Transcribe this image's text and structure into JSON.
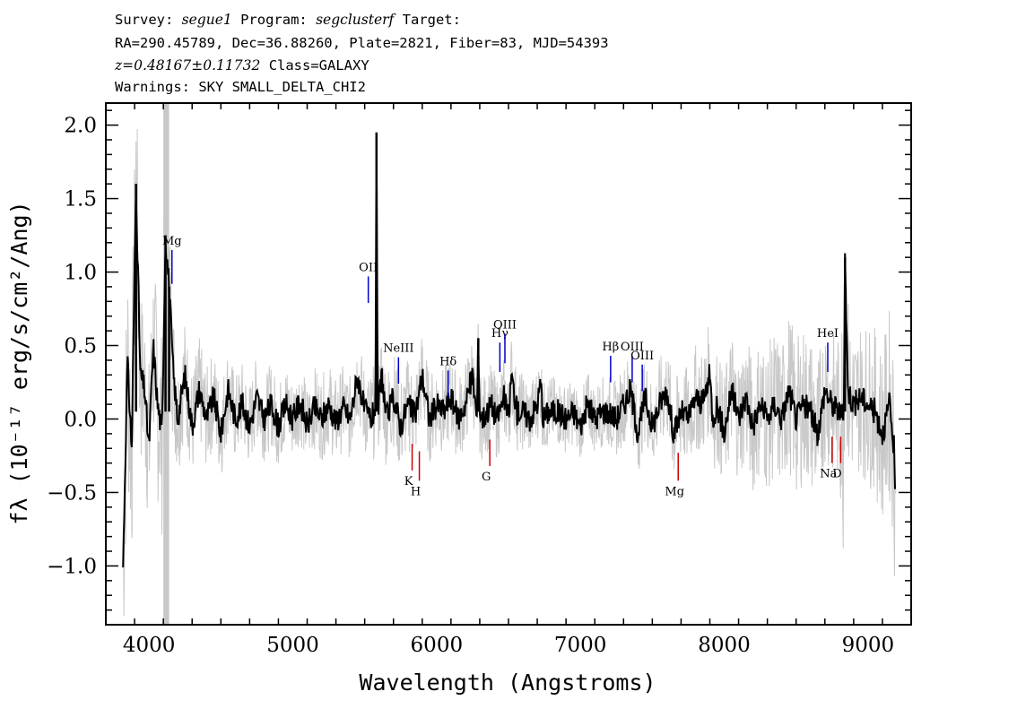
{
  "header": {
    "survey_label": "Survey:",
    "survey": "segue1",
    "program_label": "Program:",
    "program": "segclusterf",
    "target_label": "Target:",
    "line2": "RA=290.45789, Dec=36.88260, Plate=2821, Fiber=83, MJD=54393",
    "redshift": "z=0.48167±0.11732",
    "class_text": "Class=GALAXY",
    "warnings": "Warnings: SKY SMALL_DELTA_CHI2"
  },
  "chart_data": {
    "type": "line",
    "xlabel": "Wavelength (Angstroms)",
    "ylabel": "fλ (10⁻¹⁷ erg/s/cm²/Ang)",
    "xlim": [
      3700,
      9300
    ],
    "ylim": [
      -1.4,
      2.15
    ],
    "x_ticks": [
      4000,
      5000,
      6000,
      7000,
      8000,
      9000
    ],
    "y_ticks": [
      -1.0,
      -0.5,
      0.0,
      0.5,
      1.0,
      1.5,
      2.0
    ],
    "y_tick_labels": [
      "−1.0",
      "−0.5",
      "0.0",
      "0.5",
      "1.0",
      "1.5",
      "2.0"
    ],
    "masked_band": [
      4100,
      4140
    ],
    "series": [
      {
        "role": "flux",
        "color": "#000000",
        "x": [
          3820,
          3850,
          3880,
          3910,
          3940,
          3970,
          4000,
          4030,
          4060,
          4090,
          4115,
          4140,
          4170,
          4200,
          4250,
          4300,
          4350,
          4400,
          4450,
          4500,
          4550,
          4600,
          4650,
          4700,
          4750,
          4800,
          4850,
          4900,
          4950,
          5000,
          5050,
          5100,
          5150,
          5200,
          5250,
          5300,
          5350,
          5400,
          5450,
          5500,
          5550,
          5575,
          5582,
          5590,
          5620,
          5650,
          5700,
          5750,
          5800,
          5850,
          5900,
          5950,
          6000,
          6050,
          6100,
          6150,
          6200,
          6250,
          6280,
          6290,
          6300,
          6320,
          6380,
          6420,
          6470,
          6500,
          6520,
          6560,
          6600,
          6650,
          6700,
          6725,
          6740,
          6780,
          6850,
          6900,
          6950,
          7000,
          7050,
          7100,
          7150,
          7200,
          7250,
          7300,
          7350,
          7400,
          7450,
          7500,
          7550,
          7600,
          7650,
          7700,
          7750,
          7800,
          7850,
          7900,
          7920,
          7950,
          8000,
          8050,
          8100,
          8150,
          8200,
          8250,
          8300,
          8350,
          8400,
          8450,
          8500,
          8550,
          8600,
          8650,
          8700,
          8750,
          8800,
          8830,
          8840,
          8860,
          8900,
          8950,
          9000,
          9050,
          9100,
          9150,
          9180,
          9190
        ],
        "y": [
          -1.0,
          0.4,
          -0.2,
          1.6,
          0.3,
          0.2,
          -0.2,
          0.5,
          0.1,
          -0.1,
          1.25,
          0.9,
          0.3,
          0.0,
          0.3,
          -0.05,
          0.2,
          0.0,
          0.15,
          -0.1,
          0.2,
          0.0,
          0.1,
          -0.05,
          0.15,
          0.0,
          0.1,
          -0.05,
          0.1,
          0.0,
          0.12,
          -0.05,
          0.08,
          0.0,
          0.1,
          -0.02,
          0.08,
          0.0,
          0.3,
          0.05,
          0.0,
          0.1,
          1.95,
          0.05,
          0.3,
          0.0,
          0.15,
          -0.05,
          0.1,
          0.02,
          0.3,
          0.0,
          0.1,
          0.05,
          0.15,
          0.0,
          0.1,
          0.3,
          0.0,
          0.55,
          0.05,
          0.0,
          0.1,
          0.0,
          0.15,
          0.0,
          0.3,
          0.05,
          0.05,
          0.0,
          0.1,
          0.25,
          0.0,
          0.05,
          0.05,
          0.0,
          0.05,
          -0.05,
          0.1,
          0.0,
          0.05,
          0.05,
          0.0,
          0.1,
          0.2,
          -0.1,
          0.15,
          -0.05,
          0.1,
          0.2,
          -0.1,
          0.05,
          0.0,
          0.15,
          0.1,
          0.3,
          0.0,
          0.1,
          -0.1,
          0.2,
          0.0,
          0.15,
          -0.05,
          0.1,
          0.0,
          0.1,
          0.0,
          0.2,
          0.0,
          0.1,
          0.05,
          -0.1,
          0.2,
          0.1,
          0.05,
          0.0,
          1.1,
          0.2,
          0.1,
          0.15,
          0.1,
          0.05,
          -0.1,
          0.1,
          -0.2,
          -0.65
        ]
      },
      {
        "role": "error",
        "color": "#c8c8c8",
        "x": [
          3820,
          3900,
          3950,
          4100,
          4150,
          4200,
          4600,
          5000,
          5500,
          5600,
          6000,
          6500,
          7000,
          7500,
          8000,
          8300,
          8500,
          8700,
          8800,
          8830,
          8850,
          8900,
          9000,
          9100,
          9180
        ],
        "y": [
          0.8,
          0.9,
          0.6,
          0.7,
          0.55,
          0.4,
          0.3,
          0.28,
          0.3,
          0.35,
          0.3,
          0.28,
          0.22,
          0.3,
          0.4,
          0.5,
          0.55,
          0.5,
          0.5,
          1.0,
          0.7,
          0.5,
          0.55,
          0.6,
          0.7
        ]
      }
    ],
    "emission_lines": [
      {
        "label": "OII",
        "x": 5525,
        "y_top": 0.97,
        "y_bottom": 0.79,
        "color": "#0000cc"
      },
      {
        "label": "NeIII",
        "x": 5735,
        "y_top": 0.42,
        "y_bottom": 0.24,
        "color": "#0000cc"
      },
      {
        "label": "Hδ",
        "x": 6080,
        "y_top": 0.33,
        "y_bottom": 0.15,
        "color": "#0000cc"
      },
      {
        "label": "Hγ",
        "x": 6440,
        "y_top": 0.52,
        "y_bottom": 0.32,
        "color": "#0000cc"
      },
      {
        "label": "OIII",
        "x": 6475,
        "y_top": 0.58,
        "y_bottom": 0.38,
        "color": "#0000cc"
      },
      {
        "label": "Hβ",
        "x": 7210,
        "y_top": 0.43,
        "y_bottom": 0.25,
        "color": "#0000cc"
      },
      {
        "label": "OIII",
        "x": 7360,
        "y_top": 0.43,
        "y_bottom": 0.25,
        "color": "#0000cc"
      },
      {
        "label": "OIII",
        "x": 7430,
        "y_top": 0.37,
        "y_bottom": 0.19,
        "color": "#0000cc"
      },
      {
        "label": "HeI",
        "x": 8720,
        "y_top": 0.52,
        "y_bottom": 0.32,
        "color": "#0000cc"
      },
      {
        "label": "Mg",
        "x": 4160,
        "y_top": 1.15,
        "y_bottom": 0.92,
        "color": "#0000cc"
      }
    ],
    "absorption_lines": [
      {
        "label": "K",
        "x": 5830,
        "y_top": -0.17,
        "y_bottom": -0.35,
        "color": "#cc0000"
      },
      {
        "label": "H",
        "x": 5880,
        "y_top": -0.22,
        "y_bottom": -0.42,
        "color": "#cc0000"
      },
      {
        "label": "G",
        "x": 6370,
        "y_top": -0.14,
        "y_bottom": -0.32,
        "color": "#cc0000"
      },
      {
        "label": "Mg",
        "x": 7680,
        "y_top": -0.23,
        "y_bottom": -0.42,
        "color": "#cc0000"
      },
      {
        "label": "Na",
        "x": 8750,
        "y_top": -0.12,
        "y_bottom": -0.3,
        "color": "#cc0000"
      },
      {
        "label": "D",
        "x": 8810,
        "y_top": -0.12,
        "y_bottom": -0.3,
        "color": "#cc0000"
      }
    ]
  }
}
